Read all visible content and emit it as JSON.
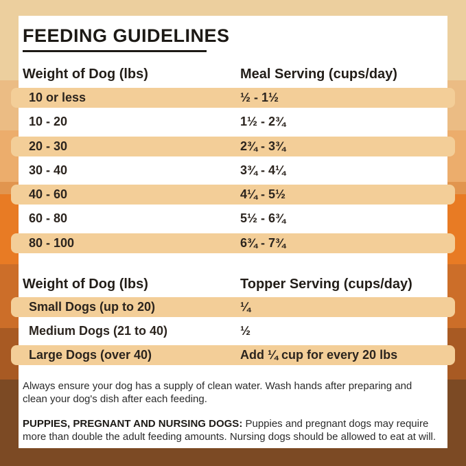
{
  "title": "FEEDING GUIDELINES",
  "colors": {
    "row_highlight": "#F3CE98",
    "card_bg": "#FFFFFF",
    "band_top": "#ECCF9E",
    "band_orange": "#E87B24",
    "band_bottom": "#7C4A24"
  },
  "meal_table": {
    "col1_header": "Weight of Dog (lbs)",
    "col2_header": "Meal Serving (cups/day)",
    "rows": [
      {
        "weight": "10 or less",
        "serving": "½ - 1½"
      },
      {
        "weight": "10 - 20",
        "serving": "1½ - 2¾"
      },
      {
        "weight": "20 - 30",
        "serving": "2¾ - 3¾"
      },
      {
        "weight": "30 - 40",
        "serving": "3¾ - 4¼"
      },
      {
        "weight": "40 - 60",
        "serving": "4¼ - 5½"
      },
      {
        "weight": "60 - 80",
        "serving": "5½ - 6¾"
      },
      {
        "weight": "80 - 100",
        "serving": "6¾ - 7¾"
      }
    ]
  },
  "topper_table": {
    "col1_header": "Weight of Dog (lbs)",
    "col2_header": "Topper Serving (cups/day)",
    "rows": [
      {
        "weight": "Small Dogs (up to 20)",
        "serving": "¼"
      },
      {
        "weight": "Medium Dogs (21 to 40)",
        "serving": "½"
      },
      {
        "weight": "Large Dogs (over 40)",
        "serving": "Add ¼ cup for every 20 lbs"
      }
    ]
  },
  "notes": {
    "water": "Always ensure your dog has a supply of clean water. Wash hands after preparing and clean your dog's dish after each feeding.",
    "puppies_label": "PUPPIES, PREGNANT AND NURSING DOGS:",
    "puppies_text": " Puppies and pregnant dogs may require more than double the adult feeding amounts. Nursing dogs should be allowed to eat at will."
  }
}
